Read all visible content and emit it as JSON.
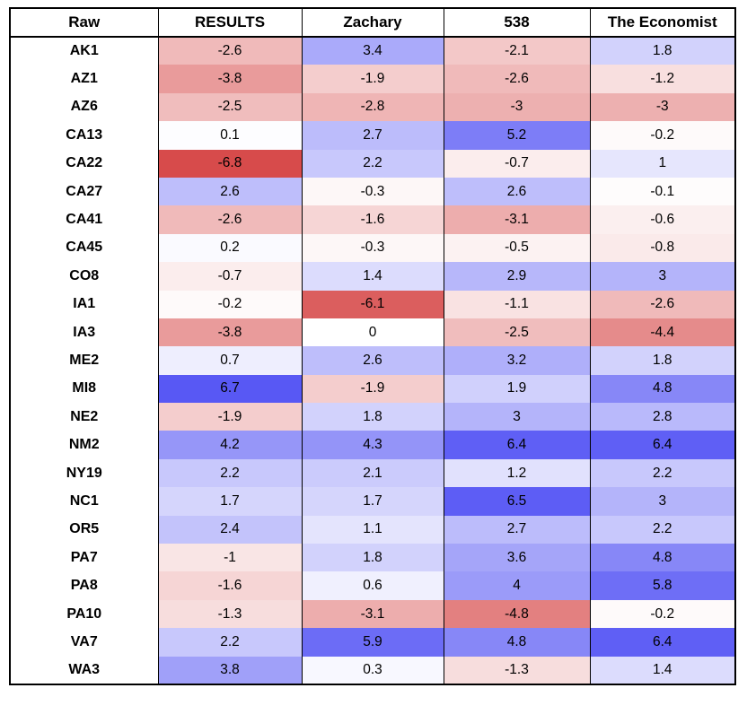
{
  "chart_data": {
    "type": "heatmap",
    "title": "",
    "row_label_header": "Raw",
    "columns": [
      "RESULTS",
      "Zachary",
      "538",
      "The Economist"
    ],
    "rows": [
      "AK1",
      "AZ1",
      "AZ6",
      "CA13",
      "CA22",
      "CA27",
      "CA41",
      "CA45",
      "CO8",
      "IA1",
      "IA3",
      "ME2",
      "MI8",
      "NE2",
      "NM2",
      "NY19",
      "NC1",
      "OR5",
      "PA7",
      "PA8",
      "PA10",
      "VA7",
      "WA3"
    ],
    "values": [
      [
        -2.6,
        3.4,
        -2.1,
        1.8
      ],
      [
        -3.8,
        -1.9,
        -2.6,
        -1.2
      ],
      [
        -2.5,
        -2.8,
        -3,
        -3
      ],
      [
        0.1,
        2.7,
        5.2,
        -0.2
      ],
      [
        -6.8,
        2.2,
        -0.7,
        1
      ],
      [
        2.6,
        -0.3,
        2.6,
        -0.1
      ],
      [
        -2.6,
        -1.6,
        -3.1,
        -0.6
      ],
      [
        0.2,
        -0.3,
        -0.5,
        -0.8
      ],
      [
        -0.7,
        1.4,
        2.9,
        3
      ],
      [
        -0.2,
        -6.1,
        -1.1,
        -2.6
      ],
      [
        -3.8,
        0,
        -2.5,
        -4.4
      ],
      [
        0.7,
        2.6,
        3.2,
        1.8
      ],
      [
        6.7,
        -1.9,
        1.9,
        4.8
      ],
      [
        -1.9,
        1.8,
        3,
        2.8
      ],
      [
        4.2,
        4.3,
        6.4,
        6.4
      ],
      [
        2.2,
        2.1,
        1.2,
        2.2
      ],
      [
        1.7,
        1.7,
        6.5,
        3
      ],
      [
        2.4,
        1.1,
        2.7,
        2.2
      ],
      [
        -1,
        1.8,
        3.6,
        4.8
      ],
      [
        -1.6,
        0.6,
        4,
        5.8
      ],
      [
        -1.3,
        -3.1,
        -4.8,
        -0.2
      ],
      [
        2.2,
        5.9,
        4.8,
        6.4
      ],
      [
        3.8,
        0.3,
        -1.3,
        1.4
      ]
    ],
    "colormap": {
      "negative_color": "#d64646",
      "neutral_color": "#ffffff",
      "positive_color": "#5050f4",
      "domain": [
        -7,
        7
      ]
    },
    "legend_position": "none",
    "grid": "column-borders-only"
  }
}
